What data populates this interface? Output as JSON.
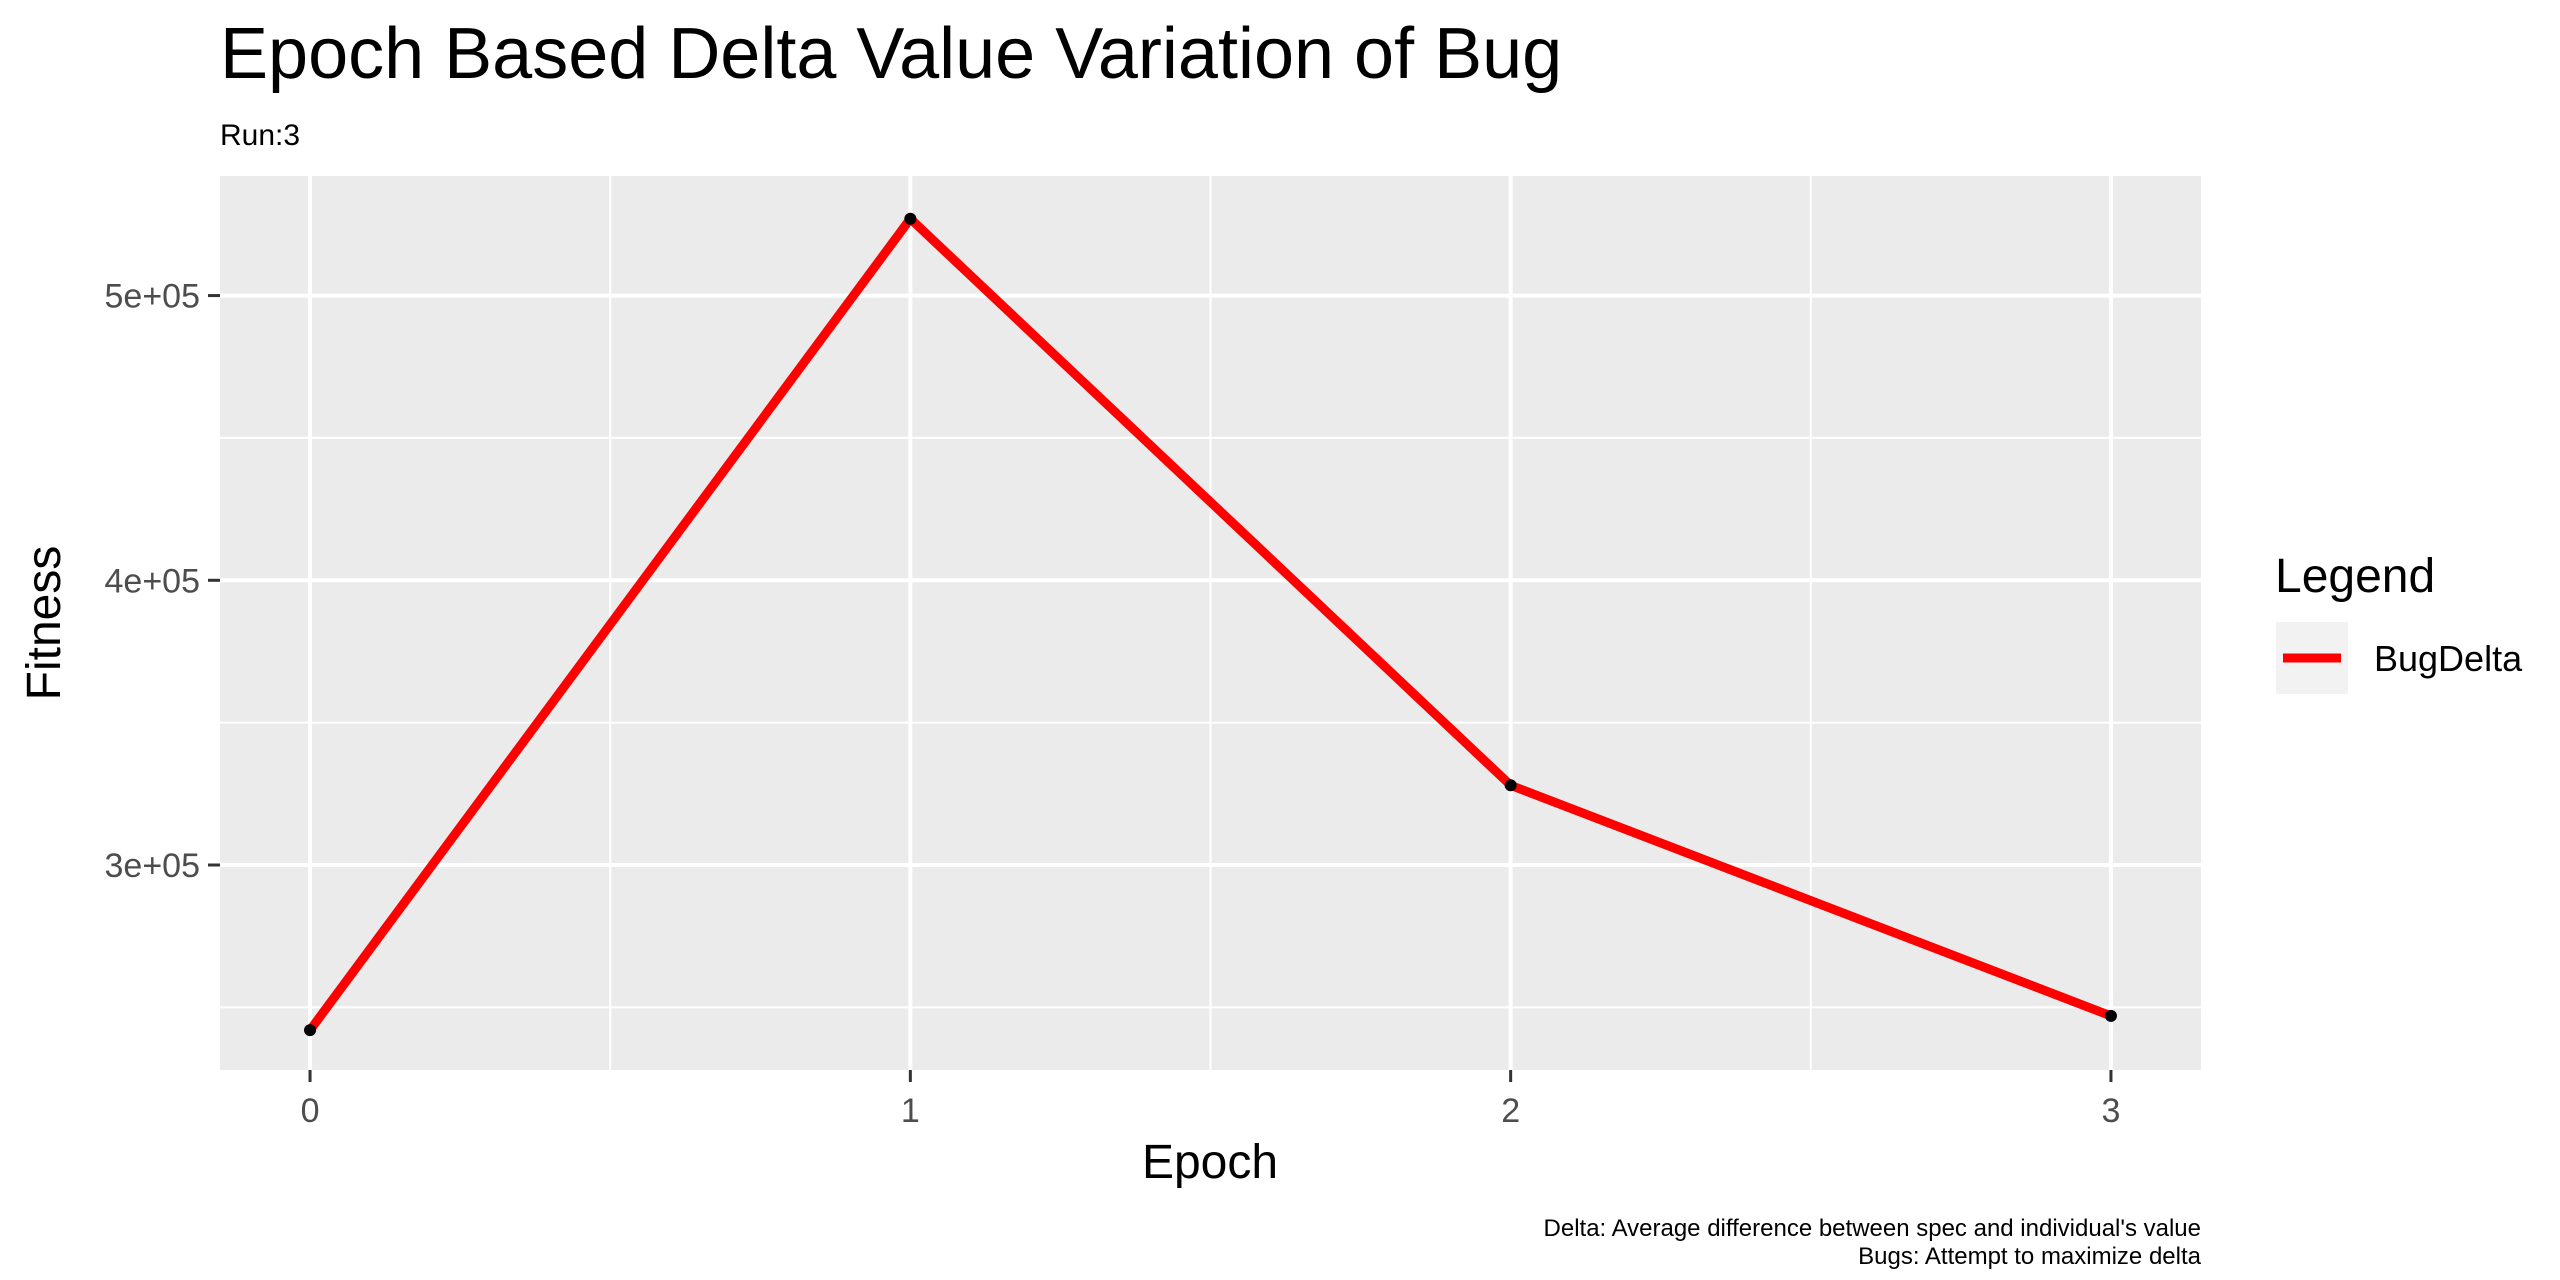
{
  "chart_data": {
    "type": "line",
    "title": "Epoch Based Delta Value Variation of Bug",
    "subtitle": "Run:3",
    "xlabel": "Epoch",
    "ylabel": "Fitness",
    "x": [
      0,
      1,
      2,
      3
    ],
    "series": [
      {
        "name": "BugDelta",
        "values": [
          242000,
          527000,
          328000,
          247000
        ],
        "color": "#ff0000"
      }
    ],
    "xticks": [
      0,
      1,
      2,
      3
    ],
    "xtick_labels": [
      "0",
      "1",
      "2",
      "3"
    ],
    "yticks": [
      300000,
      400000,
      500000
    ],
    "ytick_labels": [
      "3e+05",
      "4e+05",
      "5e+05"
    ],
    "xlim": [
      -0.15,
      3.15
    ],
    "ylim": [
      228000,
      542000
    ],
    "grid": true,
    "panel_color": "#ebebeb",
    "point_color": "#000000",
    "legend": {
      "title": "Legend",
      "position": "right"
    },
    "caption": [
      "Delta: Average difference between spec and individual's value",
      "Bugs: Attempt to maximize delta"
    ]
  }
}
